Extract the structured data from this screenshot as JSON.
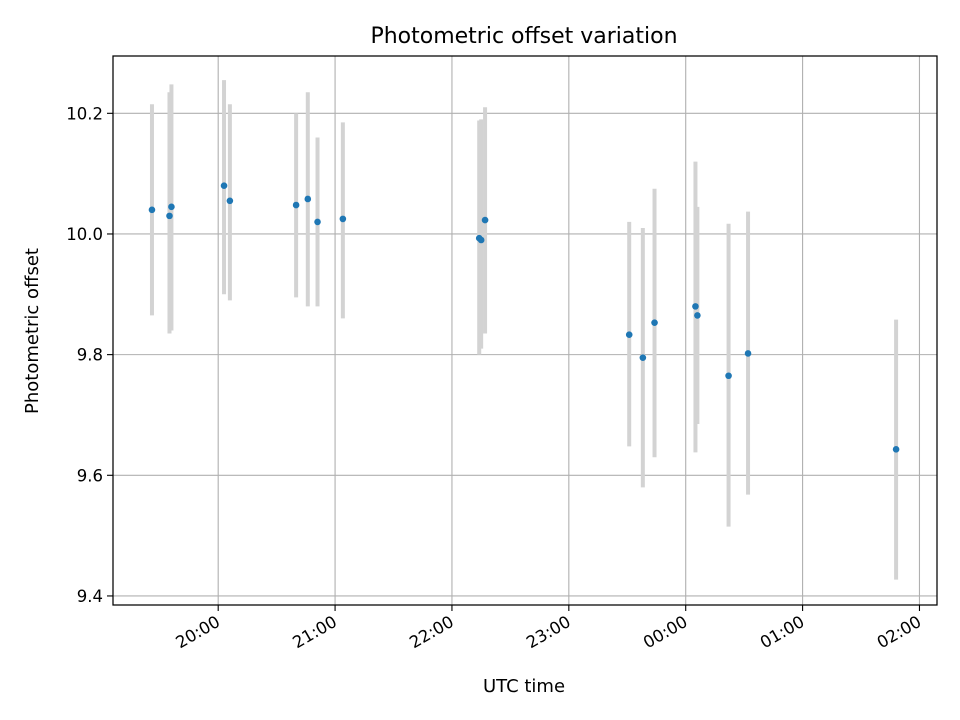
{
  "chart_data": {
    "type": "scatter",
    "title": "Photometric offset variation",
    "xlabel": "UTC time",
    "ylabel": "Photometric offset",
    "ylim": [
      9.385,
      10.295
    ],
    "xlim": [
      "19:06",
      "02:09"
    ],
    "grid": true,
    "errorbar_color": "#d3d3d3",
    "marker_color": "#1f77b4",
    "x_ticks": [
      "20:00",
      "21:00",
      "22:00",
      "23:00",
      "00:00",
      "01:00",
      "02:00"
    ],
    "y_ticks": [
      "9.4",
      "9.6",
      "9.8",
      "10.0",
      "10.2"
    ],
    "points": [
      {
        "x": "19:26",
        "y": 10.04,
        "lo": 9.865,
        "hi": 10.215
      },
      {
        "x": "19:35",
        "y": 10.03,
        "lo": 9.835,
        "hi": 10.235
      },
      {
        "x": "19:36",
        "y": 10.045,
        "lo": 9.84,
        "hi": 10.248
      },
      {
        "x": "20:03",
        "y": 10.08,
        "lo": 9.9,
        "hi": 10.255
      },
      {
        "x": "20:06",
        "y": 10.055,
        "lo": 9.89,
        "hi": 10.215
      },
      {
        "x": "20:40",
        "y": 10.048,
        "lo": 9.895,
        "hi": 10.2
      },
      {
        "x": "20:46",
        "y": 10.058,
        "lo": 9.88,
        "hi": 10.235
      },
      {
        "x": "20:51",
        "y": 10.02,
        "lo": 9.88,
        "hi": 10.16
      },
      {
        "x": "21:04",
        "y": 10.025,
        "lo": 9.86,
        "hi": 10.185
      },
      {
        "x": "22:14",
        "y": 9.993,
        "lo": 9.8,
        "hi": 10.188
      },
      {
        "x": "22:15",
        "y": 9.99,
        "lo": 9.81,
        "hi": 10.19
      },
      {
        "x": "22:17",
        "y": 10.023,
        "lo": 9.835,
        "hi": 10.21
      },
      {
        "x": "23:31",
        "y": 9.833,
        "lo": 9.648,
        "hi": 10.02
      },
      {
        "x": "23:38",
        "y": 9.795,
        "lo": 9.58,
        "hi": 10.01
      },
      {
        "x": "23:44",
        "y": 9.853,
        "lo": 9.63,
        "hi": 10.075
      },
      {
        "x": "00:05",
        "y": 9.88,
        "lo": 9.638,
        "hi": 10.12
      },
      {
        "x": "00:06",
        "y": 9.865,
        "lo": 9.685,
        "hi": 10.045
      },
      {
        "x": "00:22",
        "y": 9.765,
        "lo": 9.515,
        "hi": 10.017
      },
      {
        "x": "00:32",
        "y": 9.802,
        "lo": 9.568,
        "hi": 10.037
      },
      {
        "x": "01:48",
        "y": 9.643,
        "lo": 9.427,
        "hi": 9.858
      }
    ]
  }
}
